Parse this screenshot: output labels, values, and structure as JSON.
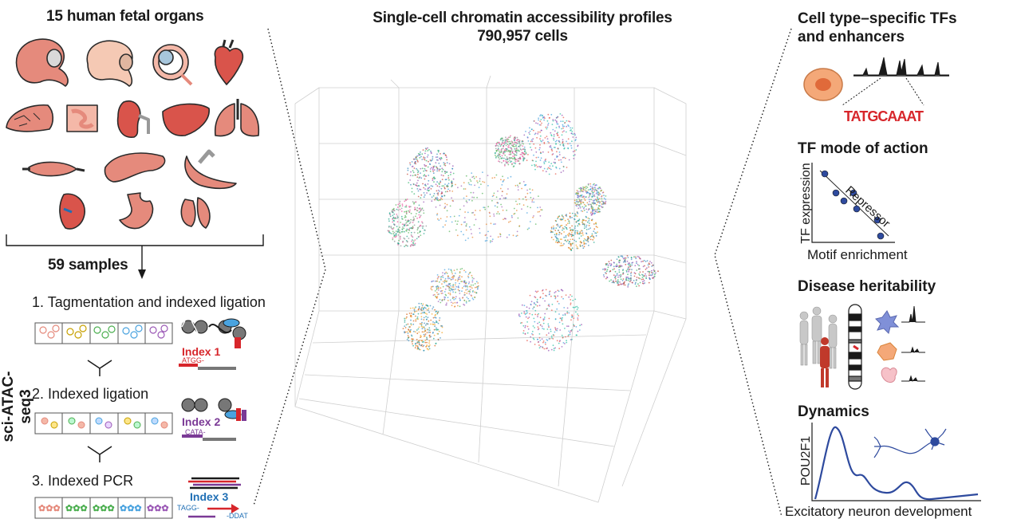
{
  "left": {
    "title": "15 human fetal organs",
    "samples": "59 samples",
    "method": "sci-ATAC-seq3",
    "steps": [
      "1. Tagmentation and indexed ligation",
      "2. Indexed ligation",
      "3. Indexed PCR"
    ],
    "indexes": [
      {
        "label": "Index 1",
        "seq": "ATGG-",
        "color": "#d7262b"
      },
      {
        "label": "Index 2",
        "seq": "CATA-",
        "color": "#7b3a96"
      },
      {
        "label": "Index 3",
        "seq": "TAGG-",
        "seq2": "-DDAT",
        "color": "#1f6fb5"
      }
    ],
    "organ_icons": [
      "cerebrum-icon",
      "cerebellum-icon",
      "eye-icon",
      "heart-icon",
      "placenta-icon",
      "intestine-icon",
      "kidney-icon",
      "liver-icon",
      "lung-icon",
      "muscle-icon",
      "pancreas-icon",
      "stomach-duct-icon",
      "spleen-icon",
      "stomach-icon",
      "thymus-icon"
    ]
  },
  "center": {
    "title_line1": "Single-cell chromatin accessibility profiles",
    "title_line2": "790,957 cells"
  },
  "right": {
    "p1_title_line1": "Cell type–specific TFs",
    "p1_title_line2": "and enhancers",
    "motif": "TATGCAAAT",
    "p2_title": "TF mode of action",
    "p2_ylabel": "TF expression",
    "p2_xlabel": "Motif enrichment",
    "p2_annotation": "Repressor",
    "p3_title": "Disease heritability",
    "p4_title": "Dynamics",
    "p4_ylabel": "POU2F1",
    "p4_xlabel": "Excitatory neuron development"
  },
  "colors": {
    "organ": "#e58a7c",
    "organ_outline": "#2a2a2a",
    "accent_red": "#d7262b",
    "accent_purple": "#7b3a96",
    "accent_blue": "#1f6fb5",
    "dot_blue": "#2e4a9e"
  }
}
